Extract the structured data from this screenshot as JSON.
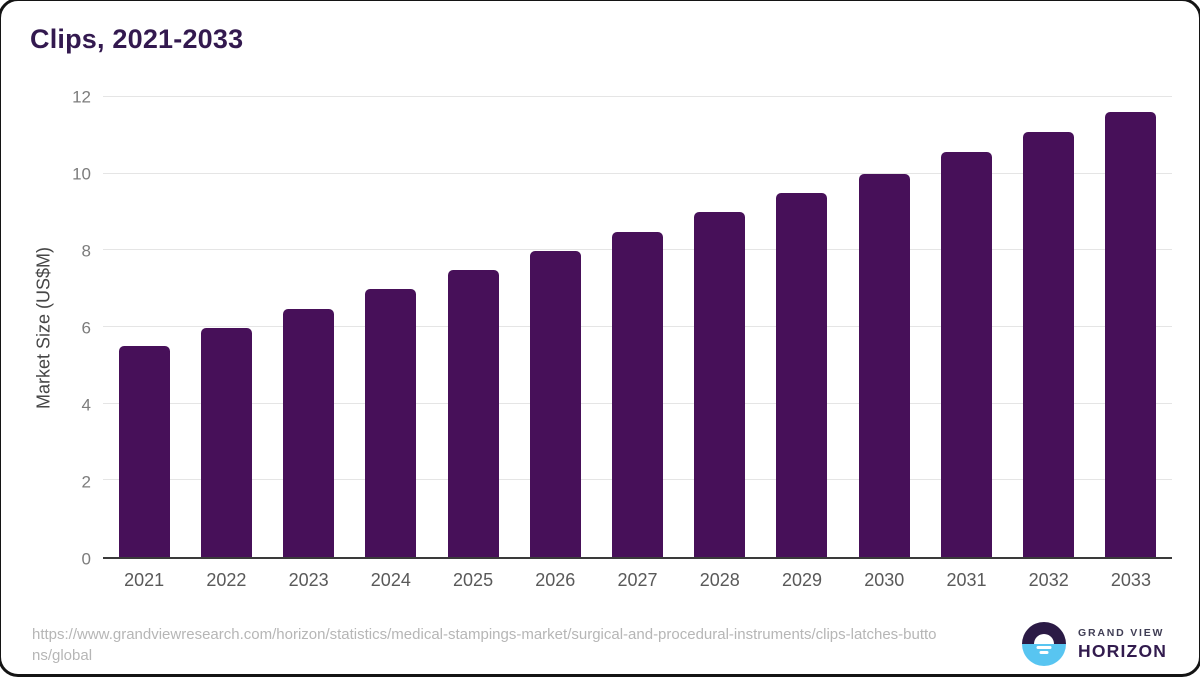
{
  "title": "Clips, 2021-2033",
  "chart_data": {
    "type": "bar",
    "title": "Clips, 2021-2033",
    "categories": [
      "2021",
      "2022",
      "2023",
      "2024",
      "2025",
      "2026",
      "2027",
      "2028",
      "2029",
      "2030",
      "2031",
      "2032",
      "2033"
    ],
    "values": [
      5.5,
      5.97,
      6.47,
      6.98,
      7.48,
      7.99,
      8.47,
      8.99,
      9.49,
      9.98,
      10.57,
      11.08,
      11.6
    ],
    "xlabel": "",
    "ylabel": "Market Size (US$M)",
    "ylim": [
      0,
      12
    ],
    "yticks": [
      0,
      2,
      4,
      6,
      8,
      10,
      12
    ],
    "grid": true,
    "legend": "none",
    "bar_color": "#471059"
  },
  "footer": {
    "source_url": "https://www.grandviewresearch.com/horizon/statistics/medical-stampings-market/surgical-and-procedural-instruments/clips-latches-buttons/global"
  },
  "logo": {
    "brand_top": "GRAND VIEW",
    "brand_bottom": "HORIZON",
    "mark_top_color": "#2b1a45",
    "mark_bottom_color": "#58c5f1"
  },
  "colors": {
    "title_text": "#33194f",
    "bar": "#471059",
    "gridline": "#e5e5e5",
    "axis_line": "#3a3a3a",
    "y_tick_text": "#7c7c7c",
    "x_tick_text": "#595959",
    "source_text": "#b6b6b6"
  }
}
